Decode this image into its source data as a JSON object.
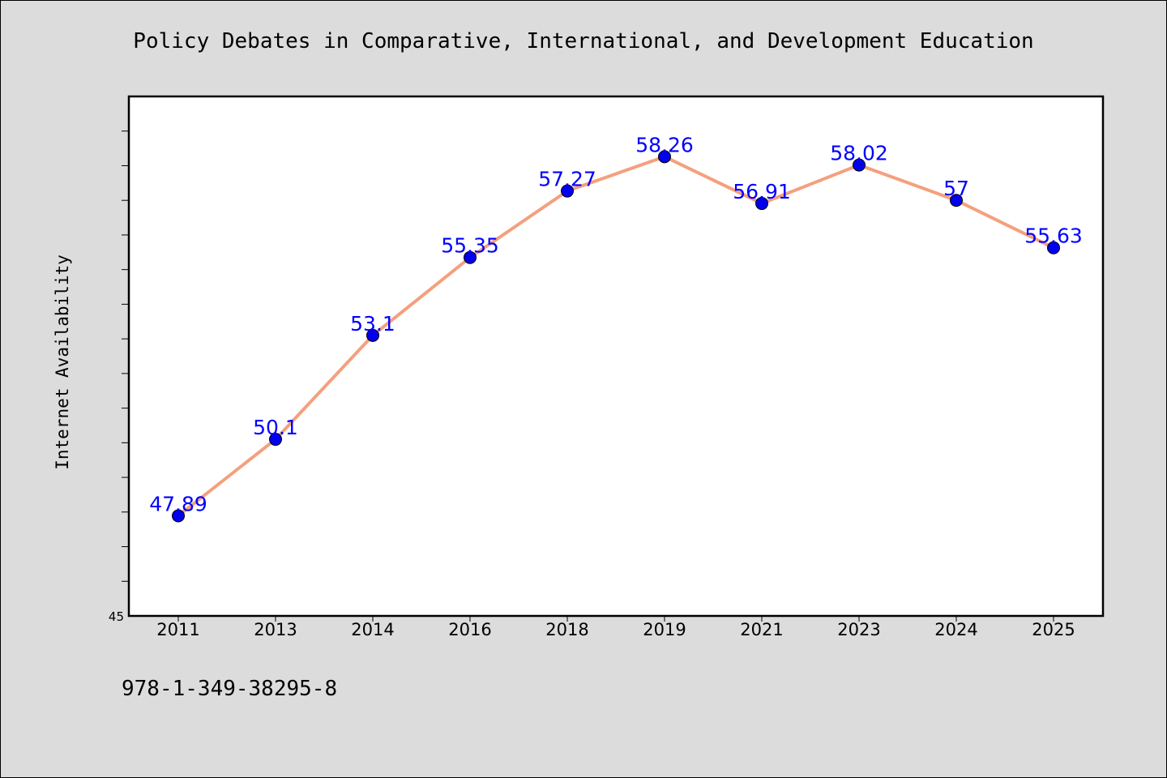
{
  "chart_data": {
    "type": "line",
    "title": "Policy Debates in Comparative, International, and Development Education",
    "ylabel": "Internet Availability",
    "xlabel": "",
    "categories": [
      "2011",
      "2013",
      "2014",
      "2016",
      "2018",
      "2019",
      "2021",
      "2023",
      "2024",
      "2025"
    ],
    "series": [
      {
        "values": [
          47.89,
          50.1,
          53.1,
          55.35,
          57.27,
          58.26,
          56.91,
          58.02,
          57,
          55.63
        ],
        "data_labels": [
          "47.89",
          "50.1",
          "53.1",
          "55.35",
          "57.27",
          "58.26",
          "56.91",
          "58.02",
          "57",
          "55.63"
        ],
        "line_color": "#f4a07e",
        "marker_color": "#0000ee",
        "label_color": "#0000ff"
      }
    ],
    "y_tick_label": "45",
    "ylim": [
      45,
      60
    ],
    "grid": false,
    "legend": "none"
  },
  "footer_text": "978-1-349-38295-8"
}
